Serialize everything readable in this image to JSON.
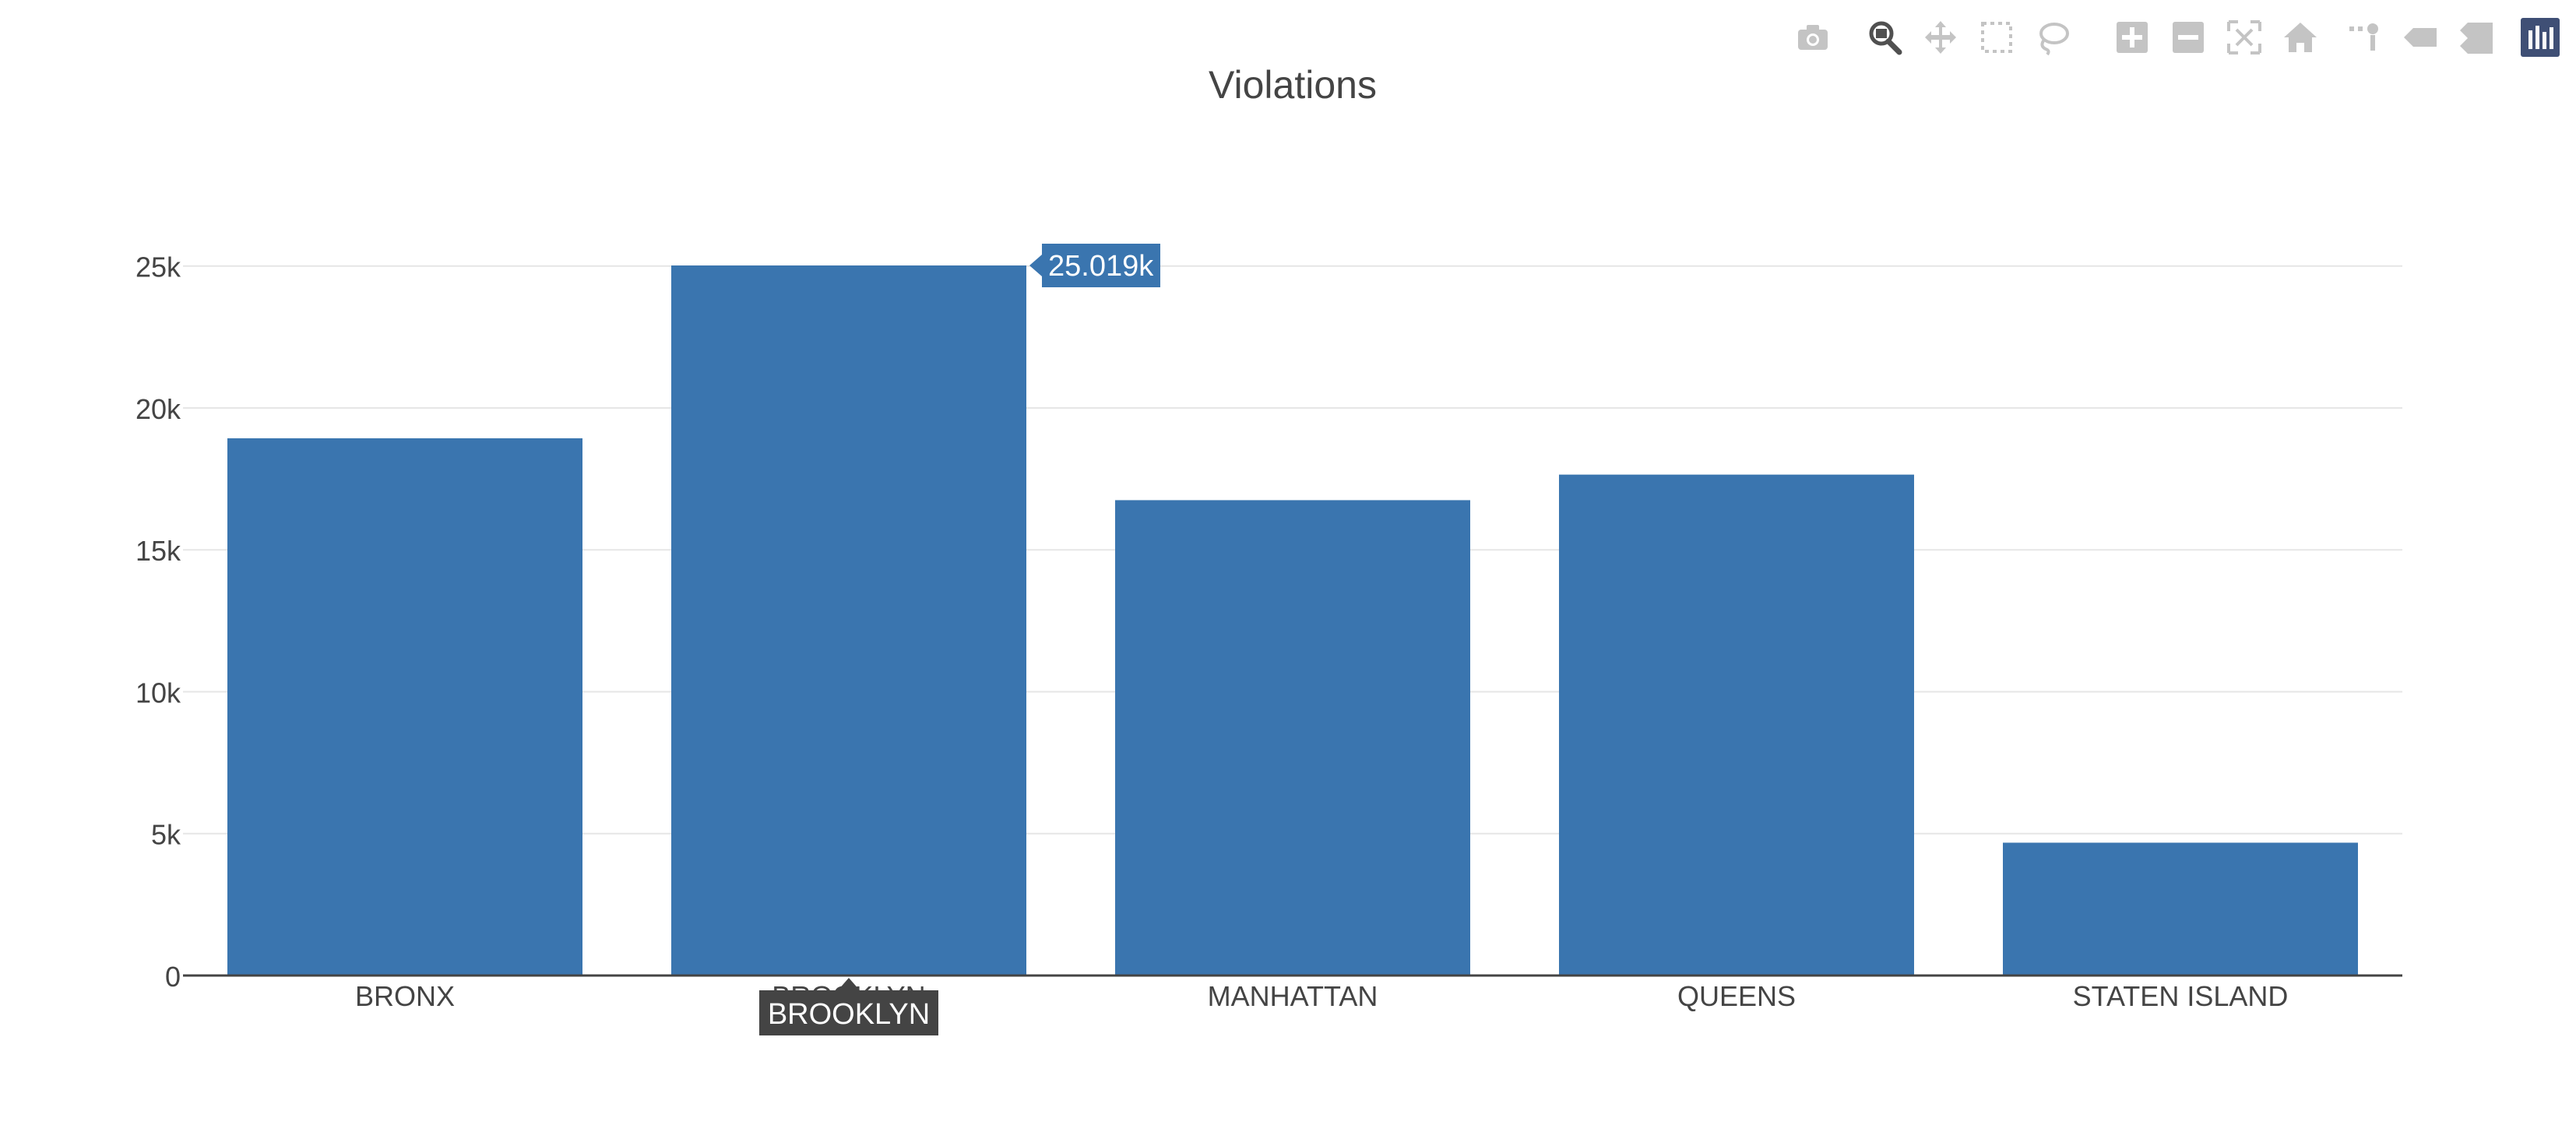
{
  "chart_data": {
    "type": "bar",
    "title": "Violations",
    "categories": [
      "BRONX",
      "BROOKLYN",
      "MANHATTAN",
      "QUEENS",
      "STATEN ISLAND"
    ],
    "values": [
      18930,
      25019,
      16750,
      17650,
      4680
    ],
    "ylim": [
      0,
      25019
    ],
    "yticks": [
      0,
      5000,
      10000,
      15000,
      20000,
      25000
    ],
    "ytick_labels": [
      "0",
      "5k",
      "10k",
      "15k",
      "20k",
      "25k"
    ],
    "xlabel": "",
    "ylabel": "",
    "grid": true,
    "bar_color": "#3a75af"
  },
  "hover": {
    "category_index": 1,
    "value_label": "25.019k",
    "category_label": "BROOKLYN",
    "value_bg": "#3a75af",
    "category_bg": "#444444"
  },
  "modebar": {
    "buttons": [
      {
        "icon": "camera-icon",
        "active": false
      },
      {
        "icon": "zoom-icon",
        "active": true
      },
      {
        "icon": "pan-icon",
        "active": false
      },
      {
        "icon": "box-select-icon",
        "active": false
      },
      {
        "icon": "lasso-select-icon",
        "active": false
      },
      {
        "icon": "zoom-in-icon",
        "active": false
      },
      {
        "icon": "zoom-out-icon",
        "active": false
      },
      {
        "icon": "autoscale-icon",
        "active": false
      },
      {
        "icon": "reset-axes-icon",
        "active": false
      },
      {
        "icon": "spike-lines-icon",
        "active": false
      },
      {
        "icon": "hover-closest-icon",
        "active": false
      },
      {
        "icon": "hover-compare-icon",
        "active": false
      },
      {
        "icon": "plotly-logo-icon",
        "active": false
      }
    ]
  }
}
